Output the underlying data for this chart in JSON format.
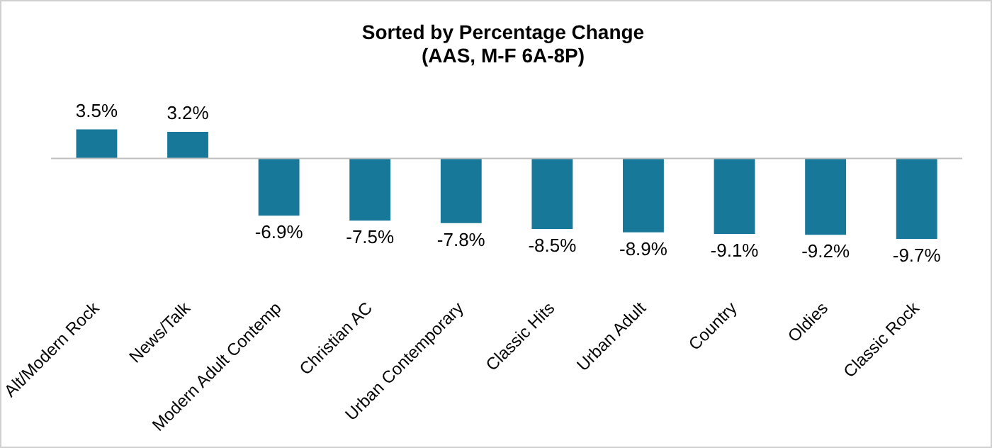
{
  "chart_data": {
    "type": "bar",
    "title": "Sorted by Percentage Change",
    "subtitle": "(AAS, M-F 6A-8P)",
    "categories": [
      "Alt/Modern Rock",
      "News/Talk",
      "Modern Adult Contemp",
      "Christian AC",
      "Urban Contemporary",
      "Classic Hits",
      "Urban Adult",
      "Country",
      "Oldies",
      "Classic Rock"
    ],
    "values": [
      3.5,
      3.2,
      -6.9,
      -7.5,
      -7.8,
      -8.5,
      -8.9,
      -9.1,
      -9.2,
      -9.7
    ],
    "value_labels": [
      "3.5%",
      "3.2%",
      "-6.9%",
      "-7.5%",
      "-7.8%",
      "-8.5%",
      "-8.9%",
      "-9.1%",
      "-9.2%",
      "-9.7%"
    ],
    "color": "#17789a",
    "grid": false,
    "legend": false
  }
}
